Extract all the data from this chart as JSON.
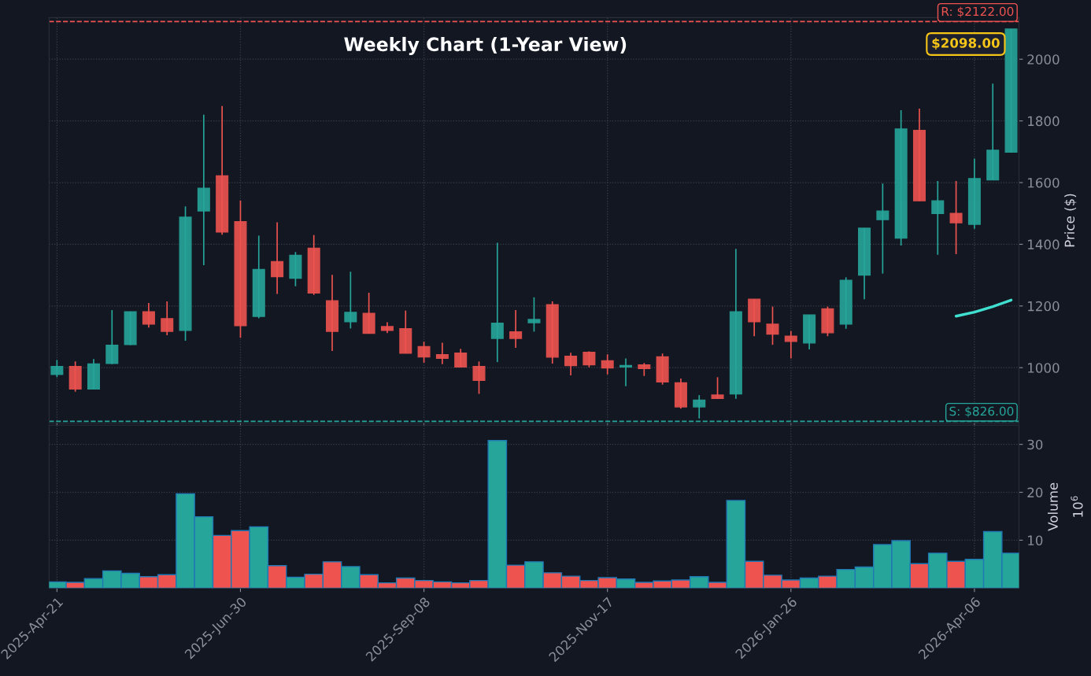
{
  "chart_data": [
    {
      "type": "candlestick",
      "title": "Weekly Chart (1-Year View)",
      "ylabel": "Price ($)",
      "x": [
        "2025-04-21",
        "2025-04-28",
        "2025-05-05",
        "2025-05-12",
        "2025-05-19",
        "2025-05-26",
        "2025-06-02",
        "2025-06-09",
        "2025-06-16",
        "2025-06-23",
        "2025-06-30",
        "2025-07-07",
        "2025-07-14",
        "2025-07-21",
        "2025-07-28",
        "2025-08-04",
        "2025-08-11",
        "2025-08-18",
        "2025-08-25",
        "2025-09-01",
        "2025-09-08",
        "2025-09-15",
        "2025-09-22",
        "2025-09-29",
        "2025-10-06",
        "2025-10-13",
        "2025-10-20",
        "2025-10-27",
        "2025-11-03",
        "2025-11-10",
        "2025-11-17",
        "2025-11-24",
        "2025-12-01",
        "2025-12-08",
        "2025-12-15",
        "2025-12-22",
        "2025-12-29",
        "2026-01-05",
        "2026-01-12",
        "2026-01-19",
        "2026-01-26",
        "2026-02-02",
        "2026-02-09",
        "2026-02-16",
        "2026-02-23",
        "2026-03-02",
        "2026-03-09",
        "2026-03-16",
        "2026-03-23",
        "2026-03-30",
        "2026-04-06",
        "2026-04-13",
        "2026-04-20"
      ],
      "ohlc": [
        [
          978,
          1025,
          969,
          1004
        ],
        [
          1004,
          1020,
          922,
          931
        ],
        [
          931,
          1028,
          931,
          1012
        ],
        [
          1014,
          1187,
          1011,
          1073
        ],
        [
          1075,
          1181,
          1073,
          1181
        ],
        [
          1181,
          1210,
          1130,
          1141
        ],
        [
          1159,
          1215,
          1105,
          1118
        ],
        [
          1121,
          1523,
          1087,
          1488
        ],
        [
          1508,
          1820,
          1332,
          1582
        ],
        [
          1622,
          1848,
          1431,
          1440
        ],
        [
          1473,
          1542,
          1097,
          1136
        ],
        [
          1166,
          1428,
          1160,
          1318
        ],
        [
          1344,
          1471,
          1239,
          1295
        ],
        [
          1290,
          1375,
          1264,
          1364
        ],
        [
          1387,
          1430,
          1236,
          1242
        ],
        [
          1217,
          1301,
          1054,
          1118
        ],
        [
          1149,
          1311,
          1127,
          1179
        ],
        [
          1176,
          1243,
          1111,
          1111
        ],
        [
          1133,
          1147,
          1112,
          1121
        ],
        [
          1126,
          1185,
          1047,
          1047
        ],
        [
          1068,
          1084,
          1016,
          1035
        ],
        [
          1042,
          1081,
          1011,
          1030
        ],
        [
          1047,
          1061,
          1002,
          1002
        ],
        [
          1004,
          1020,
          915,
          959
        ],
        [
          1095,
          1405,
          1018,
          1144
        ],
        [
          1116,
          1187,
          1064,
          1095
        ],
        [
          1146,
          1228,
          1117,
          1156
        ],
        [
          1204,
          1215,
          1013,
          1034
        ],
        [
          1037,
          1048,
          975,
          1007
        ],
        [
          1050,
          1053,
          1001,
          1009
        ],
        [
          1022,
          1043,
          978,
          999
        ],
        [
          1002,
          1030,
          940,
          1007
        ],
        [
          1009,
          1015,
          973,
          997
        ],
        [
          1035,
          1046,
          945,
          954
        ],
        [
          951,
          965,
          867,
          873
        ],
        [
          873,
          911,
          835,
          895
        ],
        [
          911,
          969,
          900,
          900
        ],
        [
          915,
          1385,
          899,
          1181
        ],
        [
          1222,
          1222,
          1102,
          1149
        ],
        [
          1141,
          1198,
          1074,
          1109
        ],
        [
          1102,
          1119,
          1030,
          1085
        ],
        [
          1080,
          1171,
          1059,
          1171
        ],
        [
          1191,
          1198,
          1102,
          1113
        ],
        [
          1141,
          1293,
          1126,
          1283
        ],
        [
          1300,
          1452,
          1222,
          1452
        ],
        [
          1480,
          1597,
          1305,
          1508
        ],
        [
          1420,
          1835,
          1396,
          1774
        ],
        [
          1769,
          1840,
          1541,
          1541
        ],
        [
          1500,
          1605,
          1366,
          1541
        ],
        [
          1500,
          1605,
          1368,
          1470
        ],
        [
          1465,
          1678,
          1450,
          1613
        ],
        [
          1609,
          1921,
          1609,
          1705
        ],
        [
          1699,
          2098,
          1697,
          2098
        ]
      ],
      "colors": [
        "#26a69a",
        "#ef5350",
        "#26a69a",
        "#26a69a",
        "#26a69a",
        "#ef5350",
        "#ef5350",
        "#26a69a",
        "#26a69a",
        "#ef5350",
        "#ef5350",
        "#26a69a",
        "#ef5350",
        "#26a69a",
        "#ef5350",
        "#ef5350",
        "#26a69a",
        "#ef5350",
        "#ef5350",
        "#ef5350",
        "#ef5350",
        "#ef5350",
        "#ef5350",
        "#ef5350",
        "#26a69a",
        "#ef5350",
        "#26a69a",
        "#ef5350",
        "#ef5350",
        "#ef5350",
        "#ef5350",
        "#26a69a",
        "#ef5350",
        "#ef5350",
        "#ef5350",
        "#26a69a",
        "#ef5350",
        "#26a69a",
        "#ef5350",
        "#ef5350",
        "#ef5350",
        "#26a69a",
        "#ef5350",
        "#26a69a",
        "#26a69a",
        "#26a69a",
        "#26a69a",
        "#ef5350",
        "#26a69a",
        "#ef5350",
        "#26a69a",
        "#26a69a",
        "#26a69a"
      ],
      "series": [
        {
          "type": "line",
          "color": "#40e0d0",
          "x": [
            "2026-03-30",
            "2026-04-06",
            "2026-04-13",
            "2026-04-20"
          ],
          "values": [
            1167,
            1180,
            1198,
            1219
          ]
        }
      ],
      "ref_lines": [
        {
          "axis": "y",
          "value": 2122,
          "label": "R: $2122.00",
          "color": "#ef5350",
          "line_style": "dashed"
        },
        {
          "axis": "y",
          "value": 826,
          "label": "S: $826.00",
          "color": "#26a69a",
          "line_style": "dashed"
        }
      ],
      "annotations": [
        {
          "text": "$2098.00",
          "x": "2026-04-20",
          "y": 2098
        }
      ],
      "xlim": [
        "2025-04-18",
        "2026-04-23"
      ],
      "xticks": [
        {
          "value": "2025-04-21",
          "label": null
        },
        {
          "value": "2025-06-30",
          "label": null
        },
        {
          "value": "2025-09-08",
          "label": null
        },
        {
          "value": "2025-11-17",
          "label": null
        },
        {
          "value": "2026-01-26",
          "label": null
        },
        {
          "value": "2026-04-06",
          "label": null
        }
      ],
      "ylim": [
        820,
        2135
      ],
      "yticks": [
        1000,
        1200,
        1400,
        1600,
        1800,
        2000
      ],
      "grid": true,
      "tick_labels": "y"
    },
    {
      "type": "bar",
      "ylabel": "Volume",
      "annotations": [
        "10$^{6}$"
      ],
      "x": [
        "2025-04-21",
        "2025-04-28",
        "2025-05-05",
        "2025-05-12",
        "2025-05-19",
        "2025-05-26",
        "2025-06-02",
        "2025-06-09",
        "2025-06-16",
        "2025-06-23",
        "2025-06-30",
        "2025-07-07",
        "2025-07-14",
        "2025-07-21",
        "2025-07-28",
        "2025-08-04",
        "2025-08-11",
        "2025-08-18",
        "2025-08-25",
        "2025-09-01",
        "2025-09-08",
        "2025-09-15",
        "2025-09-22",
        "2025-09-29",
        "2025-10-06",
        "2025-10-13",
        "2025-10-20",
        "2025-10-27",
        "2025-11-03",
        "2025-11-10",
        "2025-11-17",
        "2025-11-24",
        "2025-12-01",
        "2025-12-08",
        "2025-12-15",
        "2025-12-22",
        "2025-12-29",
        "2026-01-05",
        "2026-01-12",
        "2026-01-19",
        "2026-01-26",
        "2026-02-02",
        "2026-02-09",
        "2026-02-16",
        "2026-02-23",
        "2026-03-02",
        "2026-03-09",
        "2026-03-16",
        "2026-03-23",
        "2026-03-30",
        "2026-04-06",
        "2026-04-13",
        "2026-04-20"
      ],
      "values": [
        1.3,
        1.2,
        2.0,
        3.6,
        3.1,
        2.4,
        2.8,
        19.7,
        14.9,
        11.0,
        12.0,
        12.8,
        4.7,
        2.3,
        2.9,
        5.5,
        4.5,
        2.8,
        1.1,
        2.1,
        1.6,
        1.3,
        1.1,
        1.6,
        30.8,
        4.8,
        5.5,
        3.2,
        2.5,
        1.6,
        2.2,
        1.9,
        1.2,
        1.5,
        1.7,
        2.4,
        1.2,
        18.3,
        5.6,
        2.7,
        1.7,
        2.1,
        2.5,
        3.9,
        4.4,
        9.1,
        9.9,
        5.1,
        7.3,
        5.6,
        6.0,
        11.8,
        7.3
      ],
      "colors": [
        "#26a69a",
        "#ef5350",
        "#26a69a",
        "#26a69a",
        "#26a69a",
        "#ef5350",
        "#ef5350",
        "#26a69a",
        "#26a69a",
        "#ef5350",
        "#ef5350",
        "#26a69a",
        "#ef5350",
        "#26a69a",
        "#ef5350",
        "#ef5350",
        "#26a69a",
        "#ef5350",
        "#ef5350",
        "#ef5350",
        "#ef5350",
        "#ef5350",
        "#ef5350",
        "#ef5350",
        "#26a69a",
        "#ef5350",
        "#26a69a",
        "#ef5350",
        "#ef5350",
        "#ef5350",
        "#ef5350",
        "#26a69a",
        "#ef5350",
        "#ef5350",
        "#ef5350",
        "#26a69a",
        "#ef5350",
        "#26a69a",
        "#ef5350",
        "#ef5350",
        "#ef5350",
        "#26a69a",
        "#ef5350",
        "#26a69a",
        "#26a69a",
        "#26a69a",
        "#26a69a",
        "#ef5350",
        "#26a69a",
        "#ef5350",
        "#26a69a",
        "#26a69a",
        "#26a69a"
      ],
      "xlim": [
        "2025-04-18",
        "2026-04-23"
      ],
      "xticks": [
        {
          "value": "2025-04-21",
          "label": "2025-Apr-21"
        },
        {
          "value": "2025-06-30",
          "label": "2025-Jun-30"
        },
        {
          "value": "2025-09-08",
          "label": "2025-Sep-08"
        },
        {
          "value": "2025-11-17",
          "label": "2025-Nov-17"
        },
        {
          "value": "2026-01-26",
          "label": "2026-Jan-26"
        },
        {
          "value": "2026-04-06",
          "label": "2026-Apr-06"
        }
      ],
      "ylim": [
        0,
        34
      ],
      "yticks": [
        10,
        20,
        30
      ],
      "grid": true
    }
  ]
}
